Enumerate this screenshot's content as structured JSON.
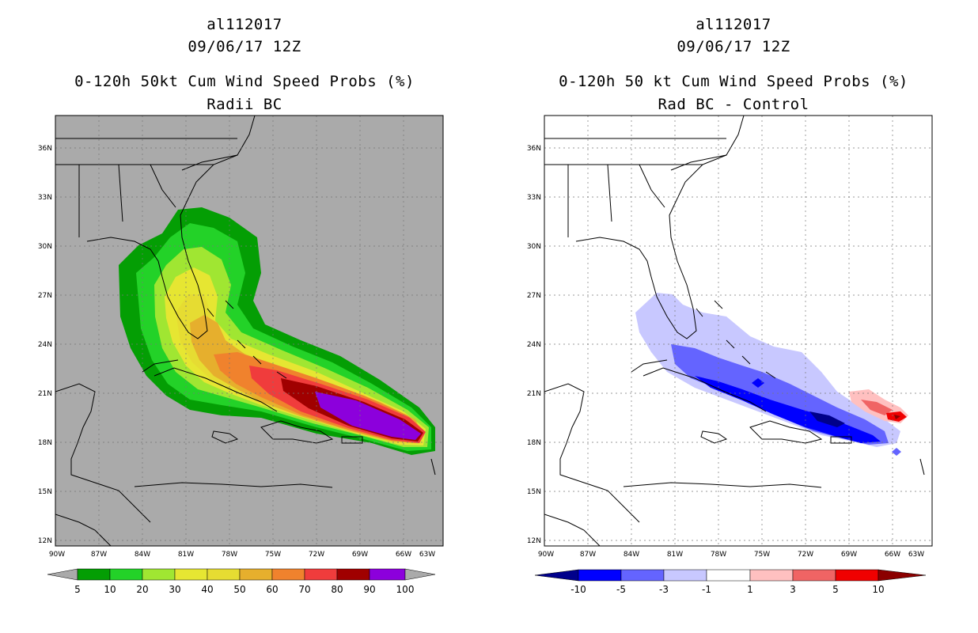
{
  "panels": [
    {
      "storm_id": "al112017",
      "datetime": "09/06/17 12Z",
      "title": "0-120h 50kt Cum Wind Speed Probs (%)",
      "subtitle": "Radii BC",
      "background": "#aaaaaa",
      "colorbar": {
        "labels": [
          "5",
          "10",
          "20",
          "30",
          "40",
          "50",
          "60",
          "70",
          "80",
          "90",
          "100"
        ],
        "colors": [
          "#aaaaaa",
          "#049e04",
          "#23d228",
          "#a0e632",
          "#e6e632",
          "#e6dc32",
          "#e6af2d",
          "#f0822d",
          "#f03c3c",
          "#a00000",
          "#8c00dc",
          "#aaaaaa"
        ]
      }
    },
    {
      "storm_id": "al112017",
      "datetime": "09/06/17 12Z",
      "title": "0-120h 50 kt Cum Wind Speed Probs (%)",
      "subtitle": "Rad BC - Control",
      "background": "#ffffff",
      "colorbar": {
        "labels": [
          "-10",
          "-5",
          "-3",
          "-1",
          "1",
          "3",
          "5",
          "10"
        ],
        "colors": [
          "#00008b",
          "#0000ff",
          "#6464ff",
          "#c8c8ff",
          "#ffffff",
          "#ffc0c0",
          "#f06464",
          "#f00000",
          "#8b0000"
        ]
      }
    }
  ],
  "map": {
    "lat_labels": [
      "36N",
      "33N",
      "30N",
      "27N",
      "24N",
      "21N",
      "18N",
      "15N",
      "12N"
    ],
    "lon_labels": [
      "90W",
      "87W",
      "84W",
      "81W",
      "78W",
      "75W",
      "72W",
      "69W",
      "66W",
      "63W"
    ]
  }
}
